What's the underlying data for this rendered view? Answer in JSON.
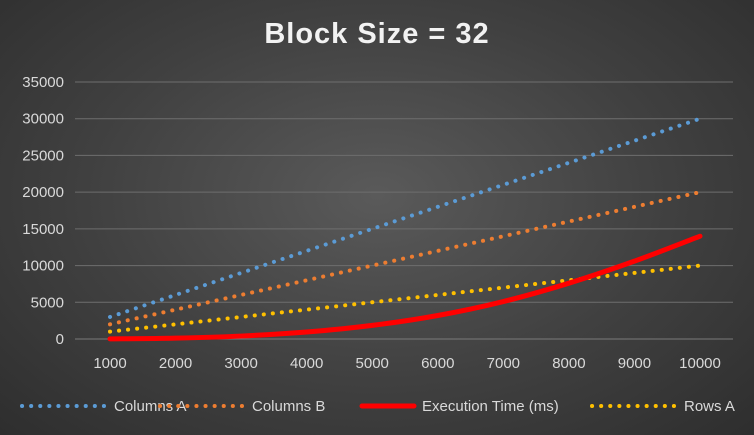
{
  "chart_data": {
    "type": "line",
    "title": "Block Size = 32",
    "xlabel": "",
    "ylabel": "",
    "x": [
      1000,
      2000,
      3000,
      4000,
      5000,
      6000,
      7000,
      8000,
      9000,
      10000
    ],
    "x_tick_labels": [
      "1000",
      "2000",
      "3000",
      "4000",
      "5000",
      "6000",
      "7000",
      "8000",
      "9000",
      "10000"
    ],
    "ylim": [
      0,
      35000
    ],
    "y_ticks": [
      0,
      5000,
      10000,
      15000,
      20000,
      25000,
      30000,
      35000
    ],
    "y_tick_labels": [
      "0",
      "5000",
      "10000",
      "15000",
      "20000",
      "25000",
      "30000",
      "35000"
    ],
    "grid": true,
    "legend_position": "bottom",
    "series": [
      {
        "name": "Columns A",
        "color": "#5b9bd5",
        "style": "dotted",
        "values": [
          3000,
          6000,
          9000,
          12000,
          15000,
          18000,
          21000,
          24000,
          27000,
          30000
        ]
      },
      {
        "name": "Columns B",
        "color": "#ed7d31",
        "style": "dotted",
        "values": [
          2000,
          4000,
          6000,
          8000,
          10000,
          12000,
          14000,
          16000,
          18000,
          20000
        ]
      },
      {
        "name": "Execution Time (ms)",
        "color": "#ff0000",
        "style": "solid",
        "values": [
          15,
          120,
          400,
          950,
          1850,
          3200,
          5100,
          7600,
          10600,
          14000
        ]
      },
      {
        "name": "Rows A",
        "color": "#ffc000",
        "style": "dotted",
        "values": [
          1000,
          2000,
          3000,
          4000,
          5000,
          6000,
          7000,
          8000,
          9000,
          10000
        ]
      }
    ]
  }
}
